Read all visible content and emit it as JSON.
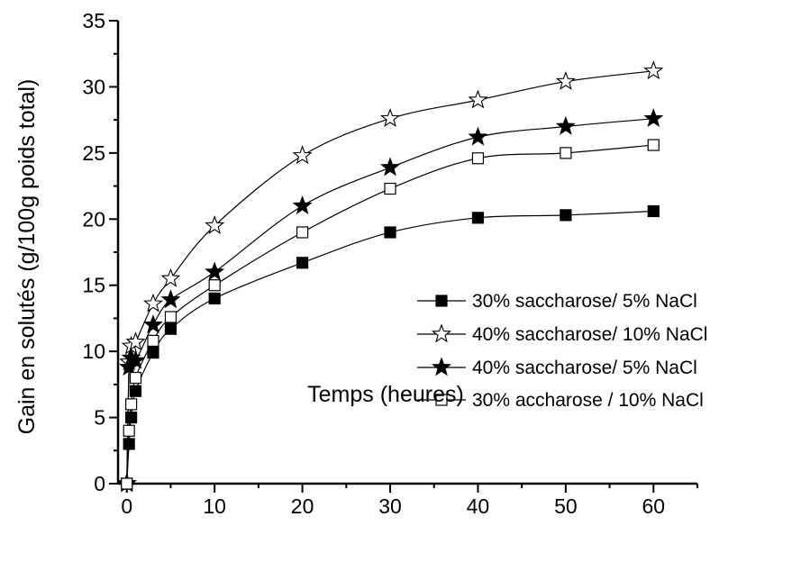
{
  "chart_data": {
    "type": "line",
    "title": "",
    "xlabel": "Temps (heures)",
    "ylabel": "Gain en solutés (g/100g poids total)",
    "xlim": [
      -1,
      65
    ],
    "ylim": [
      0,
      35
    ],
    "x_ticks": [
      0,
      10,
      20,
      30,
      40,
      50,
      60
    ],
    "y_ticks": [
      0,
      5,
      10,
      15,
      20,
      25,
      30,
      35
    ],
    "legend_position": "right",
    "grid": false,
    "series": [
      {
        "name": "30% saccharose/ 5% NaCl",
        "marker": "filled-square",
        "points": [
          [
            0,
            0
          ],
          [
            0.25,
            3
          ],
          [
            0.5,
            5
          ],
          [
            1,
            7
          ],
          [
            3,
            9.9
          ],
          [
            5,
            11.7
          ],
          [
            10,
            14
          ],
          [
            20,
            16.7
          ],
          [
            30,
            19
          ],
          [
            40,
            20.1
          ],
          [
            50,
            20.3
          ],
          [
            60,
            20.6
          ]
        ]
      },
      {
        "name": "40% saccharose/ 10% NaCl",
        "marker": "open-star",
        "points": [
          [
            0,
            0
          ],
          [
            0.25,
            9.2
          ],
          [
            0.5,
            10.4
          ],
          [
            1,
            10.7
          ],
          [
            3,
            13.6
          ],
          [
            5,
            15.5
          ],
          [
            10,
            19.5
          ],
          [
            20,
            24.8
          ],
          [
            30,
            27.6
          ],
          [
            40,
            29
          ],
          [
            50,
            30.4
          ],
          [
            60,
            31.2
          ]
        ]
      },
      {
        "name": "40% saccharose/ 5% NaCl",
        "marker": "filled-star",
        "points": [
          [
            0,
            0
          ],
          [
            0.25,
            8.8
          ],
          [
            0.5,
            9.5
          ],
          [
            1,
            9.3
          ],
          [
            3,
            12
          ],
          [
            5,
            13.9
          ],
          [
            10,
            16
          ],
          [
            20,
            21
          ],
          [
            30,
            23.9
          ],
          [
            40,
            26.2
          ],
          [
            50,
            27
          ],
          [
            60,
            27.6
          ]
        ]
      },
      {
        "name": "30% accharose / 10% NaCl",
        "marker": "open-square",
        "points": [
          [
            0,
            0
          ],
          [
            0.25,
            4
          ],
          [
            0.5,
            6
          ],
          [
            1,
            8
          ],
          [
            3,
            10.8
          ],
          [
            5,
            12.6
          ],
          [
            10,
            15
          ],
          [
            20,
            19
          ],
          [
            30,
            22.3
          ],
          [
            40,
            24.6
          ],
          [
            50,
            25
          ],
          [
            60,
            25.6
          ]
        ]
      }
    ]
  }
}
